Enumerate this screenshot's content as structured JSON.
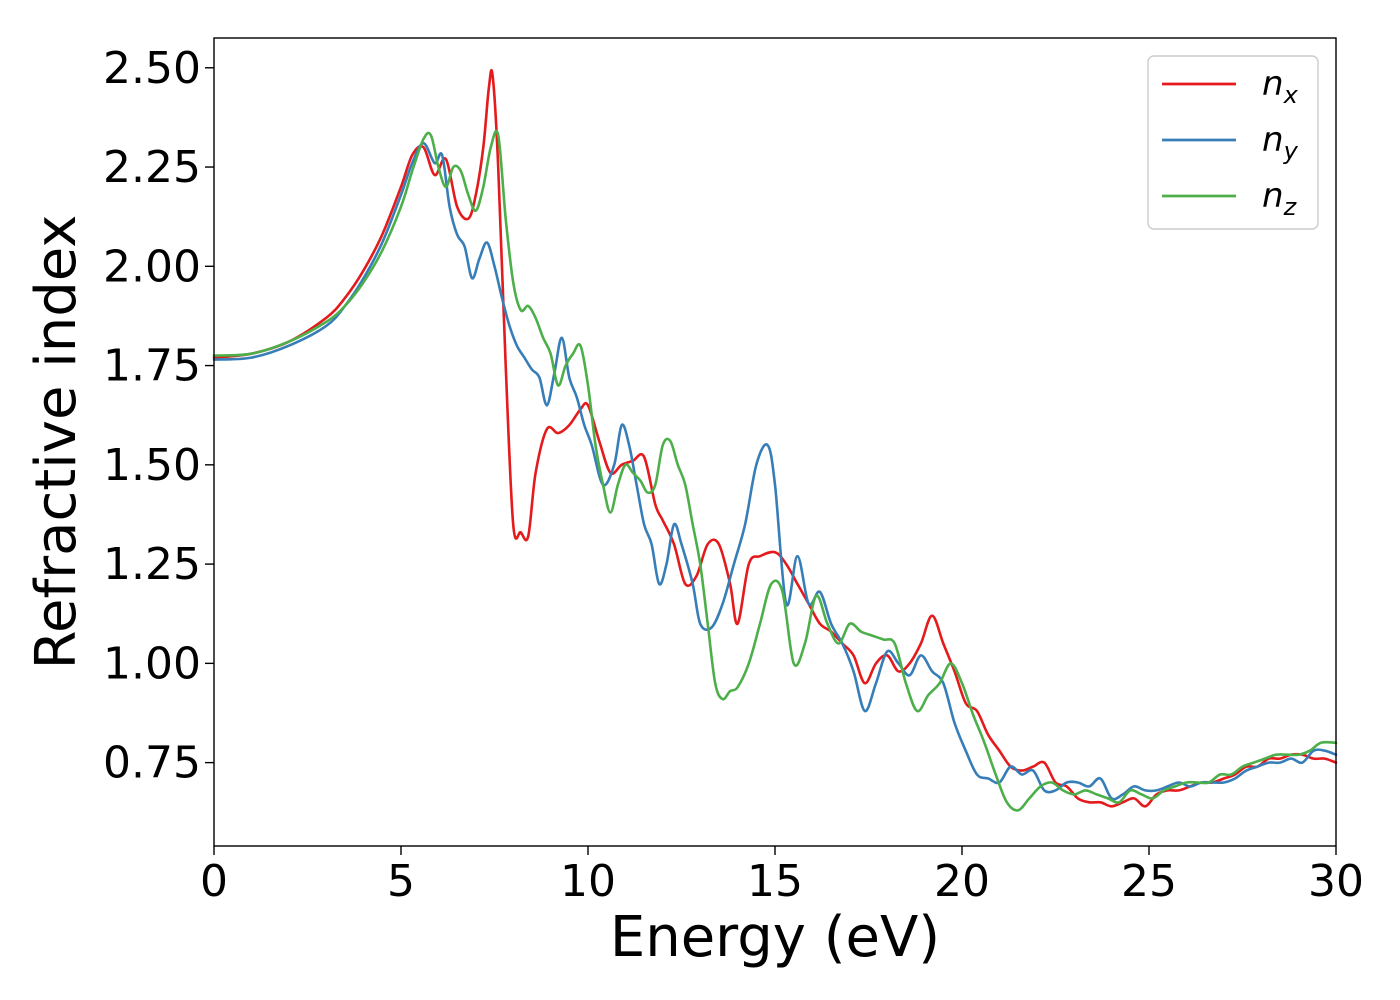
{
  "chart_data": {
    "type": "line",
    "xlabel": "Energy (eV)",
    "ylabel": "Refractive index",
    "xlim": [
      0,
      30
    ],
    "ylim": [
      0.54,
      2.575
    ],
    "xticks": [
      0,
      5,
      10,
      15,
      20,
      25,
      30
    ],
    "xtick_labels": [
      "0",
      "5",
      "10",
      "15",
      "20",
      "25",
      "30"
    ],
    "yticks": [
      0.75,
      1.0,
      1.25,
      1.5,
      1.75,
      2.0,
      2.25,
      2.5
    ],
    "ytick_labels": [
      "0.75",
      "1.00",
      "1.25",
      "1.50",
      "1.75",
      "2.00",
      "2.25",
      "2.50"
    ],
    "grid": false,
    "legend_position": "top-right",
    "series": [
      {
        "name": "n",
        "sub": "x",
        "color": "#e41a1c",
        "x": [
          0,
          1,
          2,
          3,
          3.5,
          4,
          4.5,
          5,
          5.3,
          5.6,
          5.9,
          6.2,
          6.5,
          6.8,
          7.0,
          7.2,
          7.35,
          7.45,
          7.6,
          7.8,
          8.0,
          8.2,
          8.4,
          8.6,
          8.9,
          9.2,
          9.5,
          9.8,
          10.0,
          10.3,
          10.6,
          10.9,
          11.2,
          11.5,
          11.8,
          12.0,
          12.3,
          12.6,
          12.9,
          13.2,
          13.5,
          13.8,
          14.0,
          14.3,
          14.6,
          15.0,
          15.3,
          15.6,
          15.9,
          16.2,
          16.5,
          16.8,
          17.1,
          17.4,
          17.7,
          18.0,
          18.3,
          18.6,
          18.9,
          19.2,
          19.5,
          19.8,
          20.1,
          20.4,
          20.7,
          21.0,
          21.3,
          21.6,
          21.9,
          22.2,
          22.5,
          22.8,
          23.1,
          23.4,
          23.7,
          24.0,
          24.3,
          24.6,
          24.9,
          25.2,
          25.5,
          25.8,
          26.1,
          26.4,
          26.7,
          27.0,
          27.3,
          27.6,
          27.9,
          28.2,
          28.5,
          28.8,
          29.1,
          29.4,
          29.7,
          30.0
        ],
        "y": [
          1.77,
          1.78,
          1.81,
          1.87,
          1.92,
          1.99,
          2.08,
          2.2,
          2.28,
          2.3,
          2.23,
          2.27,
          2.15,
          2.12,
          2.18,
          2.3,
          2.45,
          2.48,
          2.25,
          1.75,
          1.35,
          1.33,
          1.32,
          1.48,
          1.59,
          1.58,
          1.6,
          1.64,
          1.65,
          1.56,
          1.48,
          1.5,
          1.51,
          1.52,
          1.4,
          1.36,
          1.3,
          1.2,
          1.22,
          1.3,
          1.3,
          1.2,
          1.1,
          1.25,
          1.27,
          1.28,
          1.25,
          1.2,
          1.15,
          1.1,
          1.08,
          1.05,
          1.02,
          0.95,
          1.0,
          1.02,
          0.98,
          1.0,
          1.05,
          1.12,
          1.05,
          0.98,
          0.9,
          0.88,
          0.82,
          0.78,
          0.74,
          0.73,
          0.74,
          0.75,
          0.7,
          0.69,
          0.66,
          0.65,
          0.65,
          0.64,
          0.65,
          0.66,
          0.64,
          0.67,
          0.68,
          0.68,
          0.69,
          0.7,
          0.7,
          0.71,
          0.72,
          0.74,
          0.74,
          0.76,
          0.76,
          0.77,
          0.77,
          0.76,
          0.76,
          0.75
        ]
      },
      {
        "name": "n",
        "sub": "y",
        "color": "#377eb8",
        "x": [
          0,
          1,
          2,
          3,
          3.5,
          4,
          4.5,
          5,
          5.3,
          5.6,
          5.9,
          6.1,
          6.3,
          6.5,
          6.7,
          6.9,
          7.1,
          7.3,
          7.5,
          7.7,
          7.9,
          8.1,
          8.3,
          8.5,
          8.7,
          8.9,
          9.1,
          9.3,
          9.5,
          9.7,
          9.9,
          10.1,
          10.4,
          10.7,
          10.9,
          11.1,
          11.3,
          11.5,
          11.7,
          11.9,
          12.1,
          12.3,
          12.5,
          12.8,
          13.0,
          13.3,
          13.6,
          13.9,
          14.2,
          14.5,
          14.8,
          15.0,
          15.3,
          15.6,
          15.9,
          16.2,
          16.5,
          16.8,
          17.1,
          17.4,
          17.7,
          18.0,
          18.3,
          18.6,
          18.9,
          19.2,
          19.5,
          19.8,
          20.1,
          20.4,
          20.7,
          21.0,
          21.3,
          21.6,
          21.9,
          22.2,
          22.5,
          22.8,
          23.1,
          23.4,
          23.7,
          24.0,
          24.3,
          24.6,
          24.9,
          25.2,
          25.5,
          25.8,
          26.1,
          26.4,
          26.7,
          27.0,
          27.3,
          27.6,
          27.9,
          28.2,
          28.5,
          28.8,
          29.1,
          29.4,
          29.7,
          30.0
        ],
        "y": [
          1.765,
          1.77,
          1.8,
          1.85,
          1.9,
          1.97,
          2.06,
          2.18,
          2.26,
          2.31,
          2.26,
          2.28,
          2.15,
          2.08,
          2.05,
          1.97,
          2.02,
          2.06,
          2.0,
          1.92,
          1.85,
          1.8,
          1.77,
          1.74,
          1.72,
          1.65,
          1.73,
          1.82,
          1.72,
          1.67,
          1.6,
          1.55,
          1.45,
          1.5,
          1.6,
          1.55,
          1.45,
          1.35,
          1.3,
          1.2,
          1.25,
          1.35,
          1.3,
          1.2,
          1.1,
          1.09,
          1.15,
          1.25,
          1.35,
          1.5,
          1.55,
          1.45,
          1.15,
          1.27,
          1.15,
          1.18,
          1.1,
          1.05,
          0.98,
          0.88,
          0.95,
          1.03,
          1.0,
          0.97,
          1.02,
          0.98,
          0.95,
          0.85,
          0.78,
          0.72,
          0.71,
          0.7,
          0.74,
          0.72,
          0.73,
          0.68,
          0.68,
          0.7,
          0.7,
          0.69,
          0.71,
          0.66,
          0.67,
          0.69,
          0.68,
          0.68,
          0.69,
          0.7,
          0.69,
          0.7,
          0.7,
          0.7,
          0.71,
          0.73,
          0.74,
          0.75,
          0.75,
          0.76,
          0.75,
          0.78,
          0.78,
          0.77
        ]
      },
      {
        "name": "n",
        "sub": "z",
        "color": "#4daf4a",
        "x": [
          0,
          1,
          2,
          3,
          3.5,
          4,
          4.5,
          5,
          5.3,
          5.6,
          5.8,
          6.0,
          6.2,
          6.4,
          6.6,
          6.8,
          7.0,
          7.2,
          7.4,
          7.6,
          7.8,
          8.0,
          8.2,
          8.4,
          8.6,
          8.8,
          9.0,
          9.2,
          9.4,
          9.6,
          9.8,
          10.0,
          10.2,
          10.4,
          10.6,
          10.8,
          11.0,
          11.2,
          11.4,
          11.6,
          11.8,
          12.0,
          12.2,
          12.4,
          12.6,
          12.8,
          13.0,
          13.2,
          13.4,
          13.6,
          13.8,
          14.0,
          14.3,
          14.6,
          14.9,
          15.2,
          15.5,
          15.8,
          16.1,
          16.4,
          16.7,
          17.0,
          17.3,
          17.6,
          17.9,
          18.2,
          18.5,
          18.8,
          19.1,
          19.4,
          19.7,
          20.0,
          20.3,
          20.6,
          20.9,
          21.2,
          21.5,
          21.8,
          22.1,
          22.4,
          22.7,
          23.0,
          23.3,
          23.6,
          23.9,
          24.2,
          24.5,
          24.8,
          25.1,
          25.4,
          25.7,
          26.0,
          26.3,
          26.6,
          26.9,
          27.2,
          27.5,
          27.8,
          28.1,
          28.4,
          28.7,
          29.0,
          29.3,
          29.6,
          30.0
        ],
        "y": [
          1.775,
          1.78,
          1.81,
          1.86,
          1.9,
          1.96,
          2.04,
          2.15,
          2.24,
          2.32,
          2.33,
          2.25,
          2.2,
          2.25,
          2.24,
          2.18,
          2.14,
          2.2,
          2.3,
          2.33,
          2.12,
          1.96,
          1.89,
          1.9,
          1.87,
          1.82,
          1.78,
          1.7,
          1.75,
          1.78,
          1.8,
          1.7,
          1.55,
          1.45,
          1.38,
          1.45,
          1.5,
          1.48,
          1.46,
          1.43,
          1.45,
          1.55,
          1.56,
          1.5,
          1.45,
          1.35,
          1.25,
          1.1,
          0.95,
          0.91,
          0.93,
          0.94,
          1.0,
          1.1,
          1.2,
          1.18,
          1.0,
          1.05,
          1.17,
          1.1,
          1.05,
          1.1,
          1.08,
          1.07,
          1.06,
          1.05,
          0.95,
          0.88,
          0.92,
          0.95,
          1.0,
          0.95,
          0.87,
          0.8,
          0.72,
          0.65,
          0.63,
          0.66,
          0.69,
          0.7,
          0.68,
          0.67,
          0.68,
          0.67,
          0.66,
          0.65,
          0.68,
          0.67,
          0.66,
          0.68,
          0.69,
          0.7,
          0.7,
          0.7,
          0.72,
          0.72,
          0.74,
          0.75,
          0.76,
          0.77,
          0.77,
          0.77,
          0.78,
          0.8,
          0.8
        ]
      }
    ]
  }
}
